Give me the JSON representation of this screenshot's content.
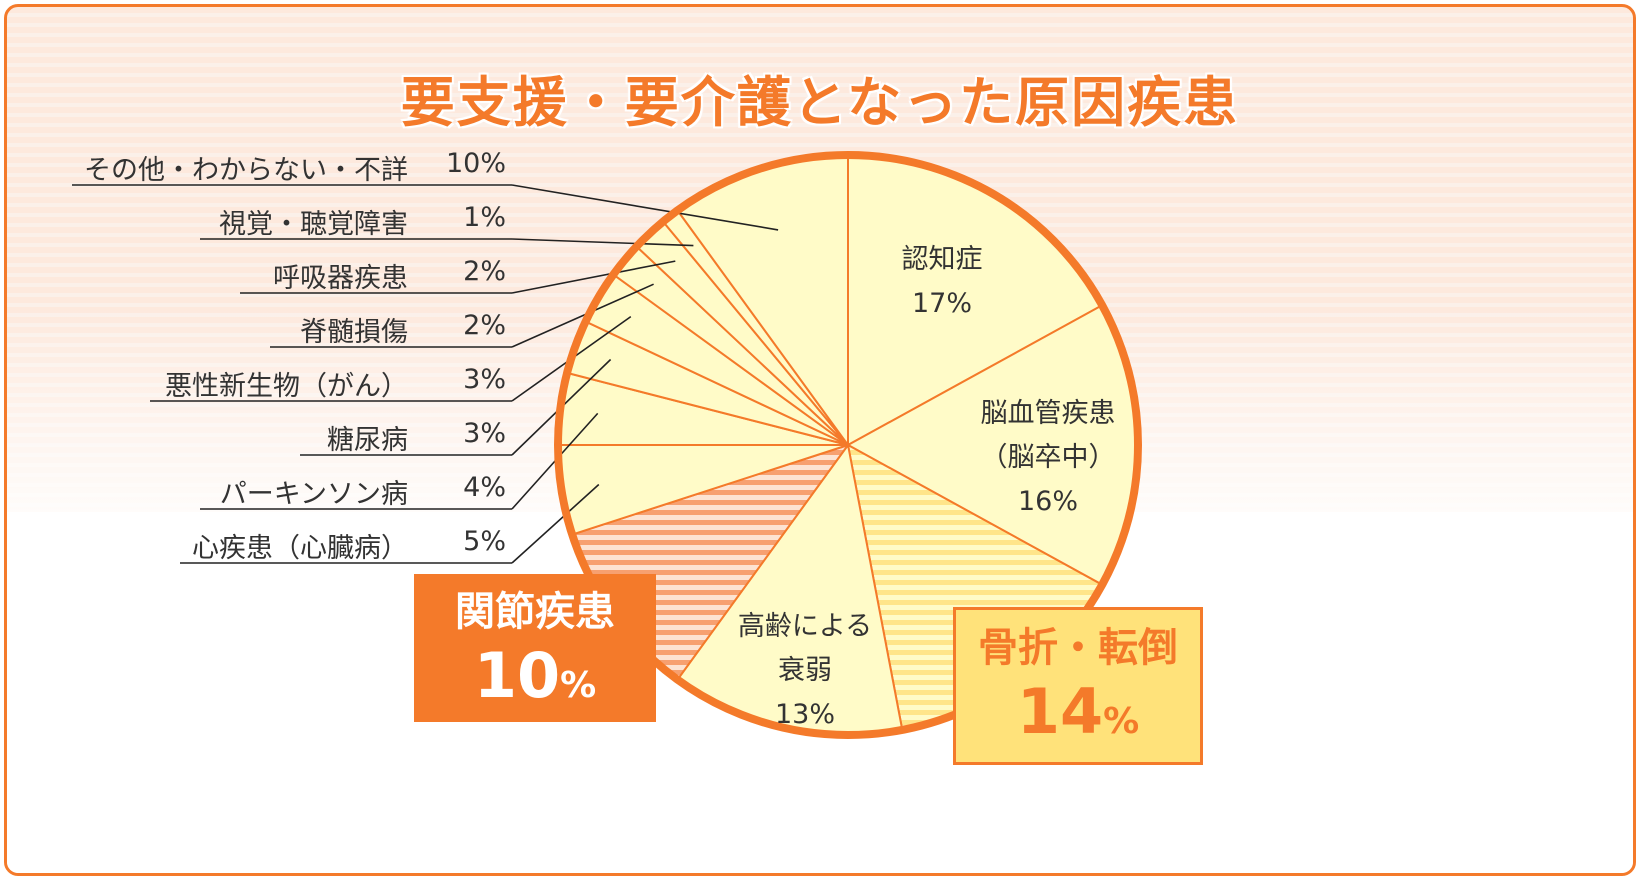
{
  "title": "要支援・要介護となった原因疾患",
  "colors": {
    "accent": "#f47a2a",
    "slice_fill": "#fffbc8",
    "stripe_yellow": "#ffe58a",
    "stripe_orange": "#f7a070",
    "text": "#333333"
  },
  "chart_data": {
    "type": "pie",
    "title": "要支援・要介護となった原因疾患",
    "unit": "%",
    "slices": [
      {
        "label": "認知症",
        "value": 17,
        "display": "17%",
        "style": "plain"
      },
      {
        "label": "脳血管疾患（脳卒中）",
        "label_lines": [
          "脳血管疾患",
          "（脳卒中）"
        ],
        "value": 16,
        "display": "16%",
        "style": "plain"
      },
      {
        "label": "骨折・転倒",
        "value": 14,
        "display": "14%",
        "style": "stripe-yellow",
        "callout": true
      },
      {
        "label": "高齢による衰弱",
        "label_lines": [
          "高齢による",
          "衰弱"
        ],
        "value": 13,
        "display": "13%",
        "style": "plain"
      },
      {
        "label": "関節疾患",
        "value": 10,
        "display": "10%",
        "style": "stripe-orange",
        "callout": true
      },
      {
        "label": "心疾患（心臓病）",
        "value": 5,
        "display": "5%",
        "style": "plain"
      },
      {
        "label": "パーキンソン病",
        "value": 4,
        "display": "4%",
        "style": "plain"
      },
      {
        "label": "糖尿病",
        "value": 3,
        "display": "3%",
        "style": "plain"
      },
      {
        "label": "悪性新生物（がん）",
        "value": 3,
        "display": "3%",
        "style": "plain"
      },
      {
        "label": "脊髄損傷",
        "value": 2,
        "display": "2%",
        "style": "plain"
      },
      {
        "label": "呼吸器疾患",
        "value": 2,
        "display": "2%",
        "style": "plain"
      },
      {
        "label": "視覚・聴覚障害",
        "value": 1,
        "display": "1%",
        "style": "plain"
      },
      {
        "label": "その他・わからない・不詳",
        "value": 10,
        "display": "10%",
        "style": "plain"
      }
    ]
  },
  "labels": {
    "inner": [
      {
        "lines": [
          "認知症",
          "17%"
        ]
      },
      {
        "lines": [
          "脳血管疾患",
          "（脳卒中）",
          "16%"
        ]
      },
      {
        "lines": [
          "高齢による",
          "衰弱",
          "13%"
        ]
      }
    ],
    "joint_box": {
      "label": "関節疾患",
      "value": "10",
      "unit": "%"
    },
    "fracture_box": {
      "label": "骨折・転倒",
      "value": "14",
      "unit": "%"
    },
    "list": [
      {
        "label": "その他・わからない・不詳",
        "value": "10%"
      },
      {
        "label": "視覚・聴覚障害",
        "value": "1%"
      },
      {
        "label": "呼吸器疾患",
        "value": "2%"
      },
      {
        "label": "脊髄損傷",
        "value": "2%"
      },
      {
        "label": "悪性新生物（がん）",
        "value": "3%"
      },
      {
        "label": "糖尿病",
        "value": "3%"
      },
      {
        "label": "パーキンソン病",
        "value": "4%"
      },
      {
        "label": "心疾患（心臓病）",
        "value": "5%"
      }
    ]
  }
}
